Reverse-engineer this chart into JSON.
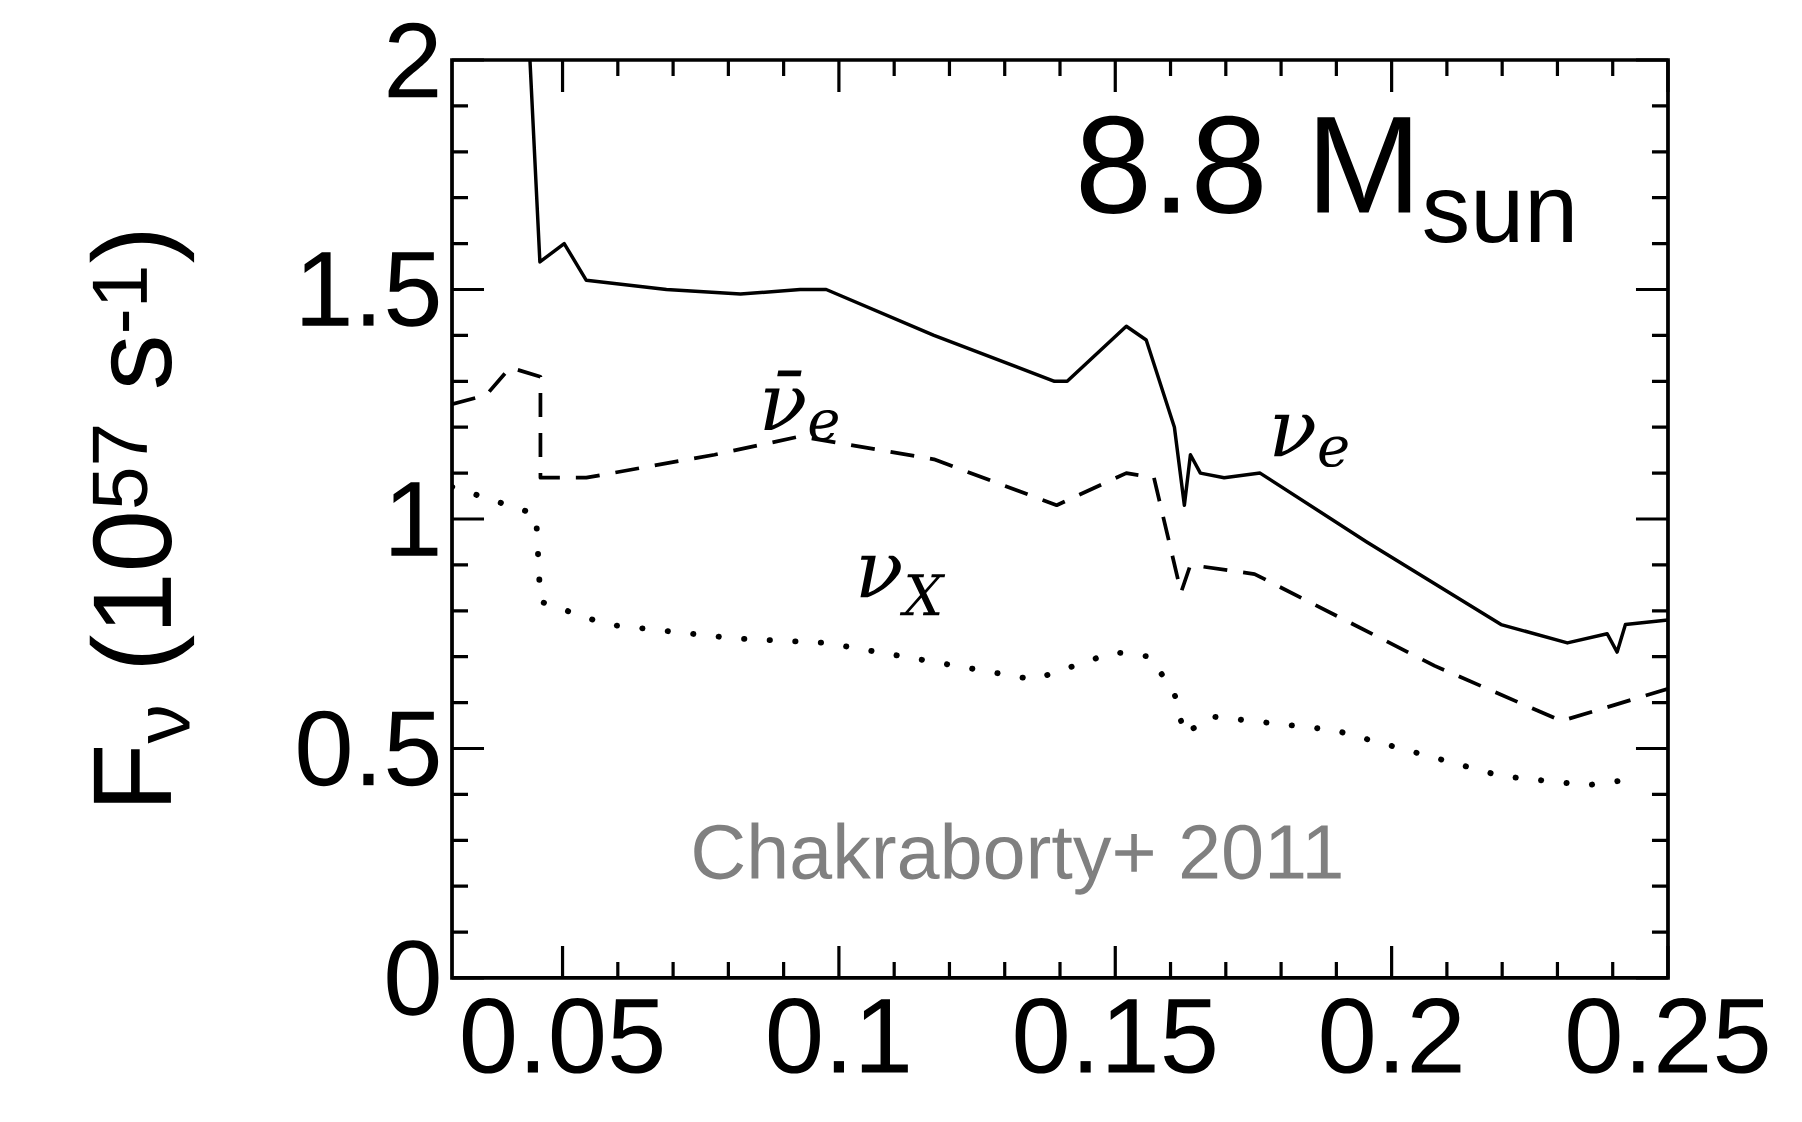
{
  "chart_data": {
    "type": "line",
    "title": "8.8 M$_{sun}$",
    "ylabel": "F$_{ν}$ (10$^{57}$ s$^{-1}$)",
    "annotations": [
      "Chakraborty+ 2011"
    ],
    "xlim": [
      0.03,
      0.25
    ],
    "ylim": [
      0,
      2
    ],
    "xticks": [
      0.05,
      0.1,
      0.15,
      0.2,
      0.25
    ],
    "yticks": [
      0,
      0.5,
      1,
      1.5,
      2
    ],
    "grid": false,
    "series": [
      {
        "name": "ν$_{e}$",
        "color": "#000000",
        "line_style": "solid",
        "x": [
          0.0441,
          0.0459,
          0.0503,
          0.0543,
          0.0688,
          0.0822,
          0.093,
          0.0977,
          0.1172,
          0.139,
          0.1413,
          0.152,
          0.1556,
          0.1607,
          0.1625,
          0.1636,
          0.1654,
          0.1697,
          0.1762,
          0.1955,
          0.2198,
          0.2318,
          0.239,
          0.2408,
          0.2423,
          0.25
        ],
        "values": [
          2.0,
          1.56,
          1.6,
          1.52,
          1.5,
          1.49,
          1.5,
          1.5,
          1.4,
          1.3,
          1.3,
          1.42,
          1.39,
          1.2,
          1.03,
          1.14,
          1.1,
          1.09,
          1.1,
          0.95,
          0.77,
          0.73,
          0.75,
          0.71,
          0.77,
          0.78
        ]
      },
      {
        "name": "ν̄$_{e}$",
        "color": "#000000",
        "line_style": "dashed",
        "x": [
          0.03,
          0.0362,
          0.0405,
          0.046,
          0.046,
          0.0543,
          0.0775,
          0.093,
          0.1172,
          0.1394,
          0.152,
          0.157,
          0.1619,
          0.1636,
          0.1752,
          0.2078,
          0.2307,
          0.239,
          0.25
        ],
        "values": [
          1.25,
          1.27,
          1.33,
          1.31,
          1.09,
          1.09,
          1.14,
          1.18,
          1.13,
          1.03,
          1.1,
          1.09,
          0.84,
          0.9,
          0.88,
          0.68,
          0.56,
          0.59,
          0.63
        ]
      },
      {
        "name": "ν$_{X}$",
        "color": "#000000",
        "line_style": "dotted",
        "x": [
          0.03,
          0.0376,
          0.0452,
          0.046,
          0.058,
          0.081,
          0.0977,
          0.1353,
          0.1498,
          0.1563,
          0.1607,
          0.1625,
          0.1672,
          0.1896,
          0.2198,
          0.2354,
          0.2416
        ],
        "values": [
          1.07,
          1.04,
          1.01,
          0.82,
          0.77,
          0.74,
          0.73,
          0.65,
          0.71,
          0.7,
          0.62,
          0.53,
          0.57,
          0.54,
          0.44,
          0.42,
          0.43
        ]
      }
    ]
  }
}
